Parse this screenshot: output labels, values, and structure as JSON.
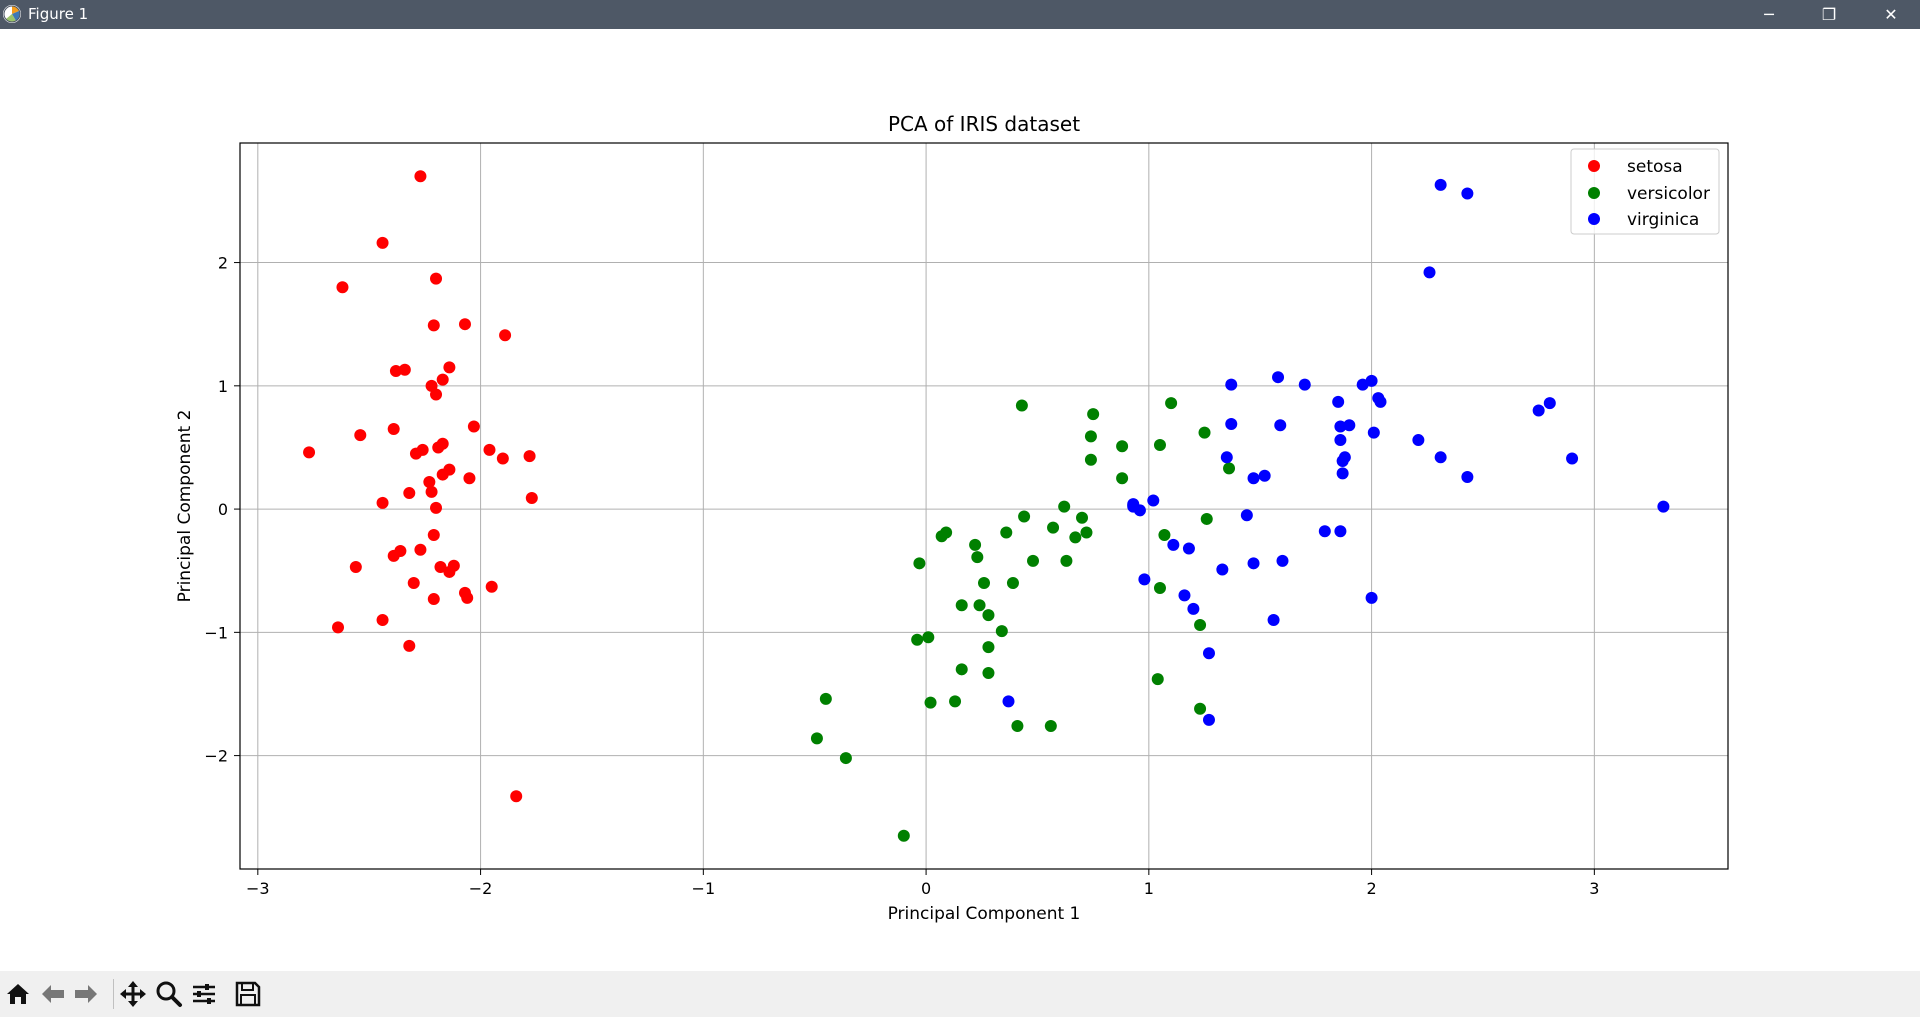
{
  "window": {
    "title": "Figure 1",
    "controls": {
      "minimize": "─",
      "maximize": "❐",
      "close": "✕"
    }
  },
  "toolbar": {
    "buttons": [
      "home-icon",
      "back-arrow-icon",
      "forward-arrow-icon",
      "pan-icon",
      "zoom-icon",
      "configure-subplots-icon",
      "save-icon"
    ]
  },
  "colors": {
    "setosa": "#ff0000",
    "versicolor": "#008000",
    "virginica": "#0000ff",
    "titlebar": "#4e5866",
    "grid": "#b0b0b0"
  },
  "chart_data": {
    "type": "scatter",
    "title": "PCA of IRIS dataset",
    "xlabel": "Principal Component 1",
    "ylabel": "Principal Component 2",
    "xlim": [
      -3.08,
      3.6
    ],
    "ylim": [
      -2.92,
      2.97
    ],
    "xticks": [
      -3,
      -2,
      -1,
      0,
      1,
      2,
      3
    ],
    "yticks": [
      -2,
      -1,
      0,
      1,
      2
    ],
    "xtick_labels": [
      "−3",
      "−2",
      "−1",
      "0",
      "1",
      "2",
      "3"
    ],
    "ytick_labels": [
      "−2",
      "−1",
      "0",
      "1",
      "2"
    ],
    "grid": true,
    "legend_position": "upper right",
    "series": [
      {
        "name": "setosa",
        "color": "#ff0000",
        "points": [
          [
            -2.27,
            2.7
          ],
          [
            -2.44,
            2.16
          ],
          [
            -2.2,
            1.87
          ],
          [
            -2.62,
            1.8
          ],
          [
            -2.21,
            1.49
          ],
          [
            -2.07,
            1.5
          ],
          [
            -1.89,
            1.41
          ],
          [
            -2.38,
            1.12
          ],
          [
            -2.34,
            1.13
          ],
          [
            -2.14,
            1.15
          ],
          [
            -2.17,
            1.05
          ],
          [
            -2.22,
            1.0
          ],
          [
            -2.2,
            0.93
          ],
          [
            -2.03,
            0.67
          ],
          [
            -2.39,
            0.65
          ],
          [
            -2.54,
            0.6
          ],
          [
            -2.17,
            0.53
          ],
          [
            -2.19,
            0.5
          ],
          [
            -2.26,
            0.48
          ],
          [
            -2.29,
            0.45
          ],
          [
            -2.77,
            0.46
          ],
          [
            -1.96,
            0.48
          ],
          [
            -1.9,
            0.41
          ],
          [
            -1.78,
            0.43
          ],
          [
            -2.14,
            0.32
          ],
          [
            -2.17,
            0.28
          ],
          [
            -2.23,
            0.22
          ],
          [
            -2.05,
            0.25
          ],
          [
            -2.32,
            0.13
          ],
          [
            -2.22,
            0.14
          ],
          [
            -2.44,
            0.05
          ],
          [
            -1.77,
            0.09
          ],
          [
            -2.2,
            0.01
          ],
          [
            -2.21,
            -0.21
          ],
          [
            -2.27,
            -0.33
          ],
          [
            -2.36,
            -0.34
          ],
          [
            -2.39,
            -0.38
          ],
          [
            -2.12,
            -0.46
          ],
          [
            -2.18,
            -0.47
          ],
          [
            -2.14,
            -0.51
          ],
          [
            -2.56,
            -0.47
          ],
          [
            -2.3,
            -0.6
          ],
          [
            -1.95,
            -0.63
          ],
          [
            -2.07,
            -0.68
          ],
          [
            -2.06,
            -0.72
          ],
          [
            -2.21,
            -0.73
          ],
          [
            -2.44,
            -0.9
          ],
          [
            -2.64,
            -0.96
          ],
          [
            -2.32,
            -1.11
          ],
          [
            -1.84,
            -2.33
          ]
        ]
      },
      {
        "name": "versicolor",
        "color": "#008000",
        "points": [
          [
            0.43,
            0.84
          ],
          [
            0.75,
            0.77
          ],
          [
            1.1,
            0.86
          ],
          [
            0.74,
            0.59
          ],
          [
            1.25,
            0.62
          ],
          [
            0.88,
            0.51
          ],
          [
            1.05,
            0.52
          ],
          [
            0.74,
            0.4
          ],
          [
            1.36,
            0.33
          ],
          [
            0.88,
            0.25
          ],
          [
            0.62,
            0.02
          ],
          [
            0.44,
            -0.06
          ],
          [
            0.7,
            -0.07
          ],
          [
            1.26,
            -0.08
          ],
          [
            0.57,
            -0.15
          ],
          [
            0.36,
            -0.19
          ],
          [
            0.72,
            -0.19
          ],
          [
            1.07,
            -0.21
          ],
          [
            0.67,
            -0.23
          ],
          [
            0.07,
            -0.22
          ],
          [
            0.09,
            -0.19
          ],
          [
            0.22,
            -0.29
          ],
          [
            0.23,
            -0.39
          ],
          [
            0.48,
            -0.42
          ],
          [
            0.63,
            -0.42
          ],
          [
            -0.03,
            -0.44
          ],
          [
            0.26,
            -0.6
          ],
          [
            0.39,
            -0.6
          ],
          [
            1.05,
            -0.64
          ],
          [
            0.16,
            -0.78
          ],
          [
            0.24,
            -0.78
          ],
          [
            0.28,
            -0.86
          ],
          [
            0.34,
            -0.99
          ],
          [
            1.23,
            -0.94
          ],
          [
            -0.04,
            -1.06
          ],
          [
            0.01,
            -1.04
          ],
          [
            0.28,
            -1.12
          ],
          [
            0.16,
            -1.3
          ],
          [
            0.28,
            -1.33
          ],
          [
            1.04,
            -1.38
          ],
          [
            -0.45,
            -1.54
          ],
          [
            0.02,
            -1.57
          ],
          [
            0.13,
            -1.56
          ],
          [
            1.23,
            -1.62
          ],
          [
            -0.49,
            -1.86
          ],
          [
            0.41,
            -1.76
          ],
          [
            0.56,
            -1.76
          ],
          [
            -0.36,
            -2.02
          ],
          [
            -0.1,
            -2.65
          ],
          [
            0.93,
            0.03
          ]
        ]
      },
      {
        "name": "virginica",
        "color": "#0000ff",
        "points": [
          [
            2.31,
            2.63
          ],
          [
            2.43,
            2.56
          ],
          [
            2.26,
            1.92
          ],
          [
            1.58,
            1.07
          ],
          [
            1.37,
            1.01
          ],
          [
            1.7,
            1.01
          ],
          [
            1.96,
            1.01
          ],
          [
            2.0,
            1.04
          ],
          [
            2.03,
            0.9
          ],
          [
            2.04,
            0.87
          ],
          [
            1.85,
            0.87
          ],
          [
            2.8,
            0.86
          ],
          [
            2.75,
            0.8
          ],
          [
            1.37,
            0.69
          ],
          [
            1.59,
            0.68
          ],
          [
            1.86,
            0.67
          ],
          [
            1.9,
            0.68
          ],
          [
            2.01,
            0.62
          ],
          [
            1.86,
            0.56
          ],
          [
            2.21,
            0.56
          ],
          [
            1.35,
            0.42
          ],
          [
            1.88,
            0.42
          ],
          [
            2.31,
            0.42
          ],
          [
            2.9,
            0.41
          ],
          [
            1.87,
            0.39
          ],
          [
            1.87,
            0.29
          ],
          [
            1.52,
            0.27
          ],
          [
            1.47,
            0.25
          ],
          [
            2.43,
            0.26
          ],
          [
            3.31,
            0.02
          ],
          [
            1.02,
            0.07
          ],
          [
            0.93,
            0.04
          ],
          [
            0.96,
            -0.01
          ],
          [
            1.44,
            -0.05
          ],
          [
            1.79,
            -0.18
          ],
          [
            1.86,
            -0.18
          ],
          [
            1.11,
            -0.29
          ],
          [
            1.18,
            -0.32
          ],
          [
            1.6,
            -0.42
          ],
          [
            1.47,
            -0.44
          ],
          [
            1.33,
            -0.49
          ],
          [
            0.98,
            -0.57
          ],
          [
            1.16,
            -0.7
          ],
          [
            1.2,
            -0.81
          ],
          [
            2.0,
            -0.72
          ],
          [
            1.56,
            -0.9
          ],
          [
            1.27,
            -1.17
          ],
          [
            0.37,
            -1.56
          ],
          [
            1.27,
            -1.71
          ],
          [
            0.93,
            0.02
          ]
        ]
      }
    ]
  }
}
